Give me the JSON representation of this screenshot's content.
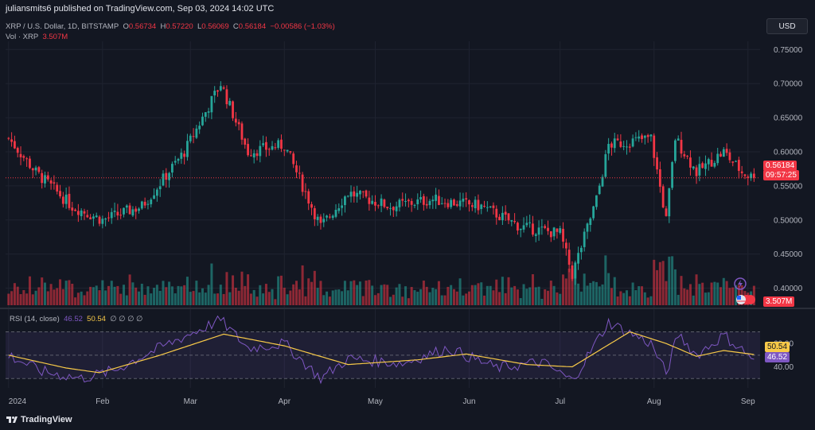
{
  "publisher_line": "juliansmits6 published on TradingView.com, Sep 03, 2024 14:02 UTC",
  "currency": "USD",
  "legend": {
    "symbol": "XRP / U.S. Dollar, 1D, BITSTAMP",
    "o_label": "O",
    "o_value": "0.56734",
    "h_label": "H",
    "h_value": "0.57220",
    "l_label": "L",
    "l_value": "0.56069",
    "c_label": "C",
    "c_value": "0.56184",
    "change": "−0.00586 (−1.03%)",
    "vol_label": "Vol · XRP",
    "vol_value": "3.507M",
    "rsi_label": "RSI (14, close)",
    "rsi_value": "46.52",
    "rsi_ma_value": "50.54",
    "rsi_extra": "∅ ∅ ∅ ∅"
  },
  "tags": {
    "price": "0.56184",
    "countdown": "09:57:25",
    "volume": "3.507M",
    "rsi_ma": "50.54",
    "rsi": "46.52"
  },
  "brand": "TradingView",
  "colors": {
    "background": "#131722",
    "up": "#26a69a",
    "down": "#f23645",
    "rsi_line": "#7e57c2",
    "rsi_ma": "#f7c948",
    "grid": "#1f2330"
  },
  "icons": [
    "lightning-icon",
    "us-flag-icon",
    "tradingview-logo-icon"
  ],
  "chart_data": [
    {
      "type": "candlestick",
      "title": "XRP / U.S. Dollar, 1D, BITSTAMP",
      "x_tick_labels": [
        "2024",
        "Feb",
        "Mar",
        "Apr",
        "May",
        "Jun",
        "Jul",
        "Aug",
        "Sep"
      ],
      "x_tick_dates": [
        "2024-01-01",
        "2024-02-01",
        "2024-03-01",
        "2024-04-01",
        "2024-05-01",
        "2024-06-01",
        "2024-07-01",
        "2024-08-01",
        "2024-09-01"
      ],
      "x_range": [
        "2023-12-31",
        "2024-09-05"
      ],
      "y_tick_labels": [
        "0.75000",
        "0.70000",
        "0.65000",
        "0.60000",
        "0.55000",
        "0.50000",
        "0.45000",
        "0.40000"
      ],
      "ylim": [
        0.375,
        0.762
      ],
      "last_price": 0.56184,
      "key_points": [
        {
          "date": "2024-01-01",
          "close": 0.62
        },
        {
          "date": "2024-01-10",
          "close": 0.57
        },
        {
          "date": "2024-01-22",
          "close": 0.52
        },
        {
          "date": "2024-02-01",
          "close": 0.5
        },
        {
          "date": "2024-02-14",
          "close": 0.52
        },
        {
          "date": "2024-02-28",
          "close": 0.6
        },
        {
          "date": "2024-03-11",
          "close": 0.7
        },
        {
          "date": "2024-03-20",
          "close": 0.6
        },
        {
          "date": "2024-04-01",
          "close": 0.61
        },
        {
          "date": "2024-04-13",
          "close": 0.49
        },
        {
          "date": "2024-04-22",
          "close": 0.54
        },
        {
          "date": "2024-05-06",
          "close": 0.52
        },
        {
          "date": "2024-05-20",
          "close": 0.53
        },
        {
          "date": "2024-06-05",
          "close": 0.52
        },
        {
          "date": "2024-06-18",
          "close": 0.49
        },
        {
          "date": "2024-07-01",
          "close": 0.48
        },
        {
          "date": "2024-07-05",
          "close": 0.42
        },
        {
          "date": "2024-07-13",
          "close": 0.53
        },
        {
          "date": "2024-07-17",
          "close": 0.61
        },
        {
          "date": "2024-07-31",
          "close": 0.62
        },
        {
          "date": "2024-08-05",
          "close": 0.5
        },
        {
          "date": "2024-08-08",
          "close": 0.62
        },
        {
          "date": "2024-08-15",
          "close": 0.57
        },
        {
          "date": "2024-08-24",
          "close": 0.6
        },
        {
          "date": "2024-08-30",
          "close": 0.57
        },
        {
          "date": "2024-09-03",
          "close": 0.56184
        }
      ]
    },
    {
      "type": "bar",
      "title": "Vol · XRP",
      "last_value": "3.507M"
    },
    {
      "type": "line",
      "title": "RSI (14, close)",
      "y_tick_labels": [
        "60.00",
        "40.00"
      ],
      "ylim": [
        22,
        88
      ],
      "bands": [
        30,
        50,
        70
      ],
      "series": [
        {
          "name": "RSI",
          "last": 46.52,
          "key_points": [
            {
              "date": "2024-01-01",
              "value": 50
            },
            {
              "date": "2024-01-12",
              "value": 36
            },
            {
              "date": "2024-01-25",
              "value": 30
            },
            {
              "date": "2024-02-05",
              "value": 37
            },
            {
              "date": "2024-02-14",
              "value": 49
            },
            {
              "date": "2024-02-28",
              "value": 66
            },
            {
              "date": "2024-03-11",
              "value": 80
            },
            {
              "date": "2024-03-20",
              "value": 56
            },
            {
              "date": "2024-04-01",
              "value": 60
            },
            {
              "date": "2024-04-13",
              "value": 30
            },
            {
              "date": "2024-04-22",
              "value": 47
            },
            {
              "date": "2024-05-10",
              "value": 43
            },
            {
              "date": "2024-05-25",
              "value": 56
            },
            {
              "date": "2024-06-10",
              "value": 39
            },
            {
              "date": "2024-06-25",
              "value": 44
            },
            {
              "date": "2024-07-05",
              "value": 28
            },
            {
              "date": "2024-07-17",
              "value": 78
            },
            {
              "date": "2024-07-31",
              "value": 60
            },
            {
              "date": "2024-08-05",
              "value": 34
            },
            {
              "date": "2024-08-09",
              "value": 68
            },
            {
              "date": "2024-08-15",
              "value": 50
            },
            {
              "date": "2024-08-24",
              "value": 67
            },
            {
              "date": "2024-09-03",
              "value": 46.52
            }
          ]
        },
        {
          "name": "RSI MA",
          "last": 50.54,
          "key_points": [
            {
              "date": "2024-01-01",
              "value": 50
            },
            {
              "date": "2024-01-20",
              "value": 39
            },
            {
              "date": "2024-01-31",
              "value": 35
            },
            {
              "date": "2024-02-20",
              "value": 50
            },
            {
              "date": "2024-03-12",
              "value": 68
            },
            {
              "date": "2024-04-01",
              "value": 58
            },
            {
              "date": "2024-04-22",
              "value": 42
            },
            {
              "date": "2024-05-15",
              "value": 46
            },
            {
              "date": "2024-05-31",
              "value": 51
            },
            {
              "date": "2024-06-20",
              "value": 42
            },
            {
              "date": "2024-07-05",
              "value": 40
            },
            {
              "date": "2024-07-24",
              "value": 70
            },
            {
              "date": "2024-08-05",
              "value": 60
            },
            {
              "date": "2024-08-15",
              "value": 49
            },
            {
              "date": "2024-08-24",
              "value": 54
            },
            {
              "date": "2024-09-03",
              "value": 50.54
            }
          ]
        }
      ]
    }
  ]
}
